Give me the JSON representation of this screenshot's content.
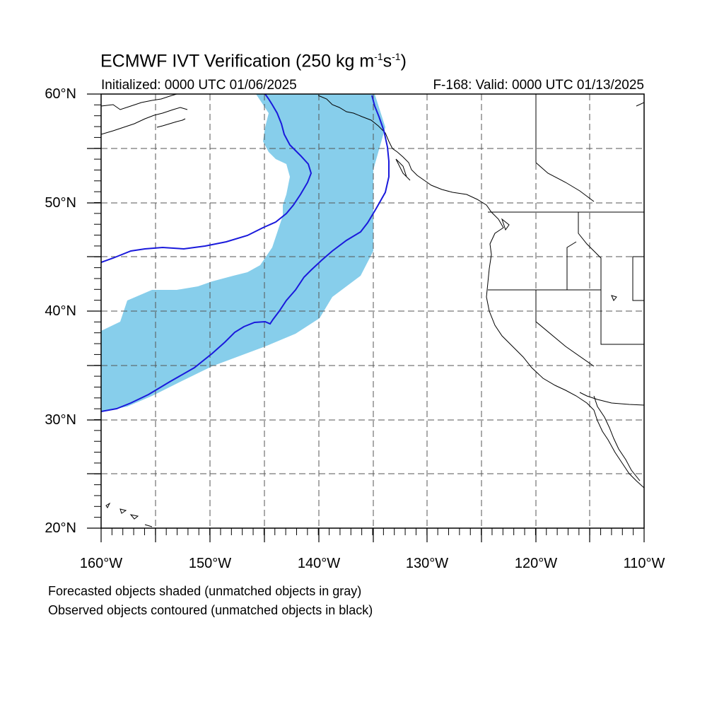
{
  "title": {
    "main": "ECMWF IVT Verification (250 kg m",
    "exp1": "-1",
    "mid": "s",
    "exp2": "-1",
    "end": ")"
  },
  "subtitle": {
    "left": "Initialized: 0000 UTC 01/06/2025",
    "right": "F-168: Valid: 0000 UTC 01/13/2025"
  },
  "lat_labels": [
    "60°N",
    "50°N",
    "40°N",
    "30°N",
    "20°N"
  ],
  "lon_labels": [
    "160°W",
    "150°W",
    "140°W",
    "130°W",
    "120°W",
    "110°W"
  ],
  "footnote": {
    "line1": "Forecasted objects shaded (unmatched objects in gray)",
    "line2": "Observed objects contoured (unmatched objects in black)"
  },
  "colors": {
    "forecast_fill": "#87ceeb",
    "observed_contour": "#1a1adc",
    "coast": "#000000",
    "grid": "#555555"
  }
}
